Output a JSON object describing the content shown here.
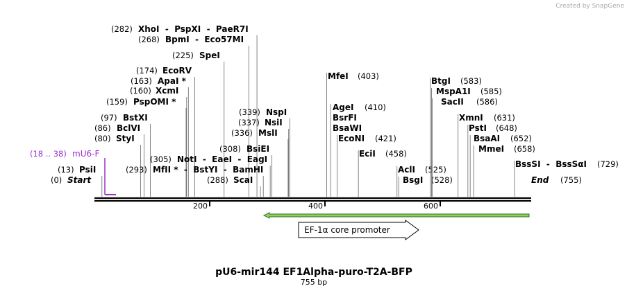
{
  "header": {
    "credit": "Created by SnapGene"
  },
  "sites": [
    {
      "position": {
        "value": 282,
        "label": "(282)"
      },
      "name": "XhoI  -  PspXI  -  PaeR7I"
    },
    {
      "position": {
        "value": 268,
        "label": "(268)"
      },
      "name": "BpmI  -  Eco57MI"
    },
    {
      "position": {
        "value": 225,
        "label": "(225)"
      },
      "name": "SpeI"
    },
    {
      "position": {
        "value": 174,
        "label": "(174)"
      },
      "name": "EcoRV"
    },
    {
      "position": {
        "value": 163,
        "label": "(163)"
      },
      "name": "ApaI *"
    },
    {
      "position": {
        "value": 160,
        "label": "(160)"
      },
      "name": "XcmI"
    },
    {
      "position": {
        "value": 159,
        "label": "(159)"
      },
      "name": "PspOMI *"
    },
    {
      "position": {
        "value": 97,
        "label": "(97)"
      },
      "name": "BstXI"
    },
    {
      "position": {
        "value": 86,
        "label": "(86)"
      },
      "name": "BclVI"
    },
    {
      "position": {
        "value": 80,
        "label": "(80)"
      },
      "name": "StyI"
    },
    {
      "position": {
        "value": 13,
        "label": "(13)"
      },
      "name": "PsiI"
    },
    {
      "position": {
        "value": 0,
        "label": "(0)"
      },
      "name": "Start"
    },
    {
      "position": {
        "value": 305,
        "label": "(305)"
      },
      "name": "NotI  -  EaeI  -  EagI"
    },
    {
      "position": {
        "value": 293,
        "label": "(293)"
      },
      "name": "MfII *  -  BstYI  -  BamHI"
    },
    {
      "position": {
        "value": 288,
        "label": "(288)"
      },
      "name": "ScaI"
    },
    {
      "position": {
        "value": 308,
        "label": "(308)"
      },
      "name": "BsiEI"
    },
    {
      "position": {
        "value": 336,
        "label": "(336)"
      },
      "name": "MslI"
    },
    {
      "position": {
        "value": 337,
        "label": "(337)"
      },
      "name": "NsiI"
    },
    {
      "position": {
        "value": 339,
        "label": "(339)"
      },
      "name": "NspI"
    },
    {
      "position": {
        "value": 403,
        "label": "(403)"
      },
      "name": "MfeI"
    },
    {
      "position": {
        "value": 410,
        "label": "(410)"
      },
      "name": "AgeI"
    },
    {
      "name": "BsrFI"
    },
    {
      "name": "BsaWI"
    },
    {
      "position": {
        "value": 421,
        "label": "(421)"
      },
      "name": "EcoNI"
    },
    {
      "position": {
        "value": 458,
        "label": "(458)"
      },
      "name": "EciI"
    },
    {
      "position": {
        "value": 525,
        "label": "(525)"
      },
      "name": "AclI"
    },
    {
      "position": {
        "value": 528,
        "label": "(528)"
      },
      "name": "BsgI"
    },
    {
      "position": {
        "value": 583,
        "label": "(583)"
      },
      "name": "BtgI"
    },
    {
      "position": {
        "value": 585,
        "label": "(585)"
      },
      "name": "MspA1I"
    },
    {
      "position": {
        "value": 586,
        "label": "(586)"
      },
      "name": "SacII"
    },
    {
      "position": {
        "value": 631,
        "label": "(631)"
      },
      "name": "XmnI"
    },
    {
      "position": {
        "value": 648,
        "label": "(648)"
      },
      "name": "PstI"
    },
    {
      "position": {
        "value": 652,
        "label": "(652)"
      },
      "name": "BsaAI"
    },
    {
      "position": {
        "value": 658,
        "label": "(658)"
      },
      "name": "MmeI"
    },
    {
      "position": {
        "value": 729,
        "label": "(729)"
      },
      "name": "BssSI  -  BssSαI"
    },
    {
      "position": {
        "value": 755,
        "label": "(755)"
      },
      "name": "End"
    }
  ],
  "ticks": [
    200,
    400,
    600
  ],
  "primer": {
    "range": "(18 .. 38)",
    "name": "mU6-F"
  },
  "feature": {
    "name": "EF-1α core promoter"
  },
  "title": "pU6-mir144 EF1Alpha-puro-T2A-BFP",
  "length": "755 bp"
}
